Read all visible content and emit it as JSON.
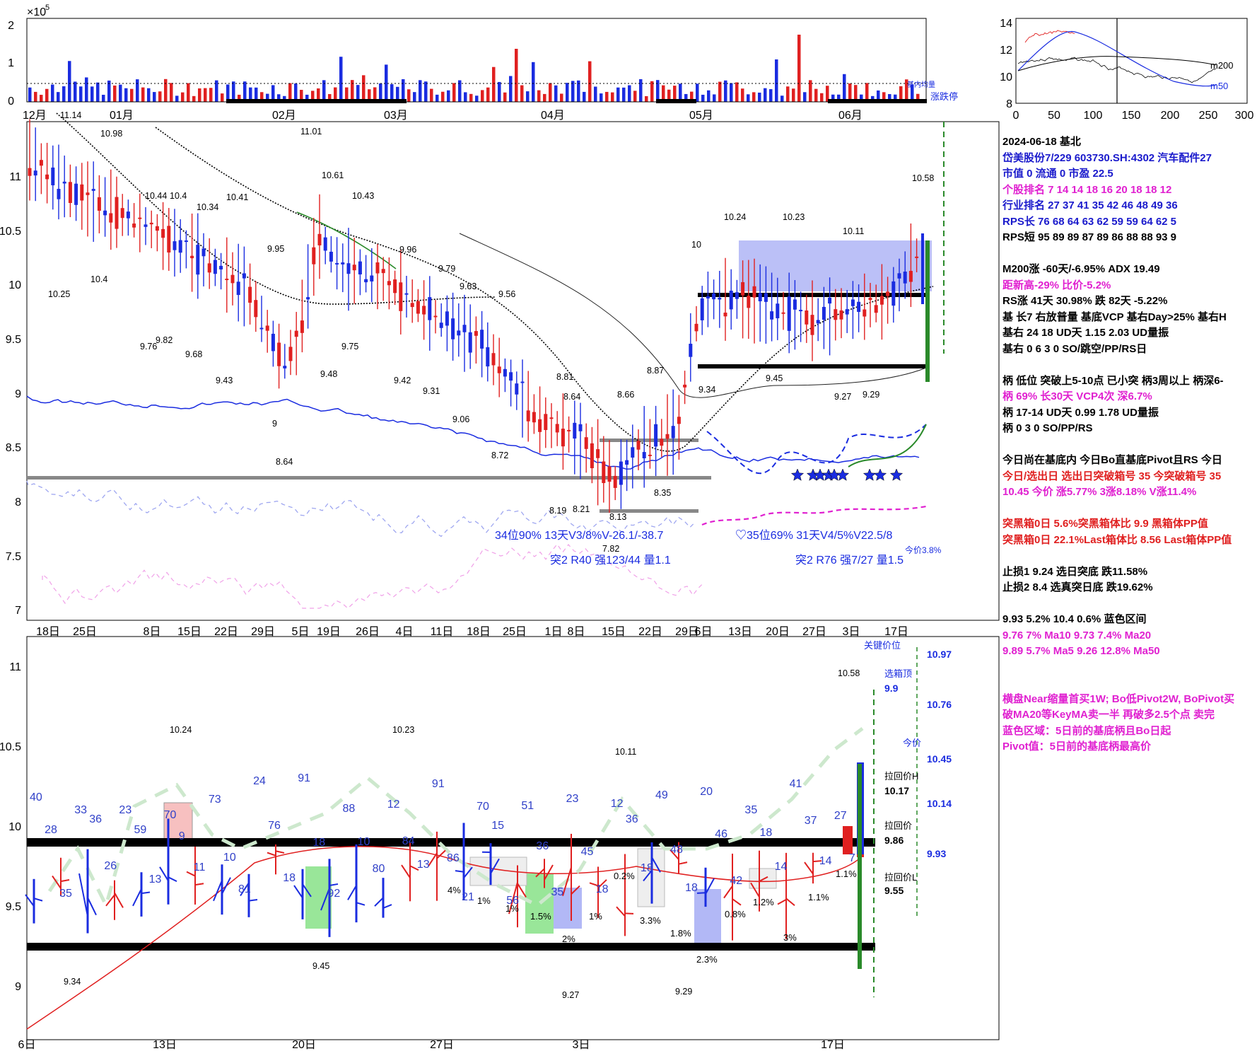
{
  "volume_panel": {
    "exponent": "×10",
    "exponent_power": "5",
    "y_ticks": [
      "2",
      "1",
      "0"
    ],
    "month_labels": [
      "12月",
      "01月",
      "02月",
      "03月",
      "04月",
      "05月",
      "06月"
    ],
    "legend": [
      "基内均量",
      "涨跌停"
    ]
  },
  "inset_chart": {
    "y_ticks": [
      "14",
      "12",
      "10",
      "8"
    ],
    "x_ticks": [
      "0",
      "50",
      "100",
      "150",
      "200",
      "250",
      "300"
    ],
    "series_labels": [
      "m200",
      "m50"
    ]
  },
  "main_chart": {
    "y_ticks": [
      "11",
      "10.5",
      "10",
      "9.5",
      "9",
      "8.5",
      "8",
      "7.5",
      "7"
    ],
    "x_ticks": [
      "18日",
      "25日",
      "8日",
      "15日",
      "22日",
      "29日",
      "5日",
      "19日",
      "26日",
      "4日",
      "11日",
      "18日",
      "25日",
      "1日",
      "8日",
      "15日",
      "22日",
      "29日",
      "6日",
      "13日",
      "20日",
      "27日",
      "3日",
      "17日"
    ],
    "price_labels": [
      "11.14",
      "10.98",
      "11.01",
      "10.61",
      "10.43",
      "10.44",
      "10.4",
      "10.34",
      "10.41",
      "9.95",
      "9.96",
      "9.79",
      "9.63",
      "9.56",
      "10.25",
      "10.4",
      "9.76",
      "9.82",
      "9.68",
      "9.43",
      "9.75",
      "9.48",
      "9.42",
      "9.31",
      "9.06",
      "8.72",
      "8.81",
      "8.64",
      "8.66",
      "8.87",
      "8.35",
      "8.19",
      "8.21",
      "8.13",
      "7.82",
      "9",
      "8.64",
      "10",
      "10.24",
      "10.23",
      "10.11",
      "10.58",
      "9.34",
      "9.45",
      "9.27",
      "9.29"
    ],
    "stats": [
      "34位90%  13天V3/8%V-26.1/-38.7",
      "突2 R40 强123/44 量1.1",
      "♡35位69%  31天V4/5%V22.5/8",
      "突2 R76 强7/27 量1.5",
      "今价3.8%"
    ]
  },
  "side_panel": [
    {
      "text": "2024-06-18 基北",
      "color": "black"
    },
    {
      "text": "岱美股份7/229 603730.SH:4302 汽车配件27",
      "color": "blue"
    },
    {
      "text": "市值 0  流通 0 市盈 22.5",
      "color": "blue_mix"
    },
    {
      "text": " 个股排名 7   14   14   18   16   20   18   18   12",
      "color": "mag"
    },
    {
      "text": " 行业排名 27   37   41   35   42   46   48   49   36",
      "color": "blue"
    },
    {
      "text": " RPS长 76   68   64   63   62   59   59   64   62   5",
      "color": "blue"
    },
    {
      "text": " RPS短 95   89   89   87   89   86   88   88   93   9",
      "color": "black"
    },
    {
      "text": "",
      "color": "black"
    },
    {
      "text": "M200涨 -60天/-6.95%  ADX 19.49",
      "color": "black"
    },
    {
      "text": "距新高-29%  比价-5.2%",
      "color": "mag"
    },
    {
      "text": "RS涨 41天 30.98%  跌 82天 -5.22%",
      "color": "black"
    },
    {
      "text": "基 长7 右放普量 基底VCP 基右Day>25% 基右H",
      "color": "black"
    },
    {
      "text": "基右 24 18 UD天 1.15 2.03 UD量振",
      "color": "black"
    },
    {
      "text": "基右 0 6 3 0 SO/跳空/PP/RS日",
      "color": "black"
    },
    {
      "text": "",
      "color": "black"
    },
    {
      "text": "柄 低位  突破上5-10点  已小突  柄3周以上  柄深6-",
      "color": "black"
    },
    {
      "text": "柄 69%  长30天   VCP4次  深6.7%",
      "color": "mag"
    },
    {
      "text": "柄 17-14 UD天  0.99 1.78 UD量振",
      "color": "black"
    },
    {
      "text": "柄 0 3 0 SO/PP/RS",
      "color": "black"
    },
    {
      "text": "",
      "color": "black"
    },
    {
      "text": "今日尚在基底内  今日Bo直基底Pivot且RS  今日",
      "color": "black"
    },
    {
      "text": "今日/选出日  选出日突破箱号 35 今突破箱号 35",
      "color": "red"
    },
    {
      "text": "10.45 今价  涨5.77% 3涨8.18% V涨11.4%",
      "color": "mag"
    },
    {
      "text": "",
      "color": "black"
    },
    {
      "text": "突黑箱0日 5.6%突黑箱体比 9.9  黑箱体PP值",
      "color": "red"
    },
    {
      "text": "突黑箱0日 22.1%Last箱体比 8.56 Last箱体PP值",
      "color": "red"
    },
    {
      "text": "",
      "color": "black"
    },
    {
      "text": "止损1 9.24 选日突底  跌11.58%",
      "color": "black"
    },
    {
      "text": "止损2 8.4 选真突日底  跌19.62%",
      "color": "black"
    },
    {
      "text": "",
      "color": "black"
    },
    {
      "text": "9.93 5.2% 10.4 0.6%  蓝色区间",
      "color": "black"
    },
    {
      "text": "  9.76 7% Ma10   9.73 7.4% Ma20",
      "color": "mag"
    },
    {
      "text": "  9.89 5.7% Ma5   9.26 12.8% Ma50",
      "color": "mag"
    },
    {
      "text": "",
      "color": "black"
    },
    {
      "text": "",
      "color": "black"
    },
    {
      "text": " 横盘Near缩量首买1W; Bo低Pivot2W, BoPivot买",
      "color": "mag"
    },
    {
      "text": " 破MA20等KeyMA卖一半 再破多2.5个点 卖完",
      "color": "mag"
    },
    {
      "text": "蓝色区域：5日前的基底柄且Bo日起",
      "color": "mag"
    },
    {
      "text": "Pivot值：5日前的基底柄最高价",
      "color": "mag"
    }
  ],
  "detail_chart": {
    "y_ticks": [
      "11",
      "10.5",
      "10",
      "9.5",
      "9"
    ],
    "x_ticks": [
      "6日",
      "13日",
      "20日",
      "27日",
      "3日",
      "17日"
    ],
    "labels_top": [
      "10.24",
      "10.23",
      "10.11",
      "10.58",
      "9.34",
      "9.45",
      "9.27",
      "9.29"
    ],
    "key_price_title": "关键价位",
    "key_prices": [
      {
        "label": "选箱顶",
        "value": "9.9"
      },
      {
        "label": "",
        "value": "10.97"
      },
      {
        "label": "",
        "value": "10.76"
      },
      {
        "label": "今价",
        "value": "10.45"
      },
      {
        "label": "拉回价H",
        "value": "10.17"
      },
      {
        "label": "",
        "value": "10.14"
      },
      {
        "label": "拉回价",
        "value": "9.86"
      },
      {
        "label": "",
        "value": "9.93"
      },
      {
        "label": "拉回价L",
        "value": "9.55"
      }
    ],
    "bar_labels": [
      "40",
      "28",
      "35",
      "33",
      "36",
      "26",
      "23",
      "59",
      "13",
      "70",
      "9",
      "11",
      "73",
      "10",
      "81",
      "24",
      "76",
      "18",
      "91",
      "18",
      "92",
      "88",
      "10",
      "80",
      "12",
      "84",
      "13",
      "91",
      "86",
      "21",
      "70",
      "15",
      "56",
      "51",
      "36",
      "35",
      "23",
      "45",
      "18",
      "12",
      "36",
      "18",
      "49",
      "48",
      "18",
      "20",
      "46",
      "42",
      "35",
      "18",
      "14",
      "41",
      "37",
      "14",
      "27",
      "7"
    ],
    "pct_labels": [
      "4%",
      "1%",
      "1%",
      "1.5%",
      "2%",
      "1%",
      "0.2%",
      "3.3%",
      "1.8%",
      "2.3%",
      "0.8%",
      "1.2%",
      "3%",
      "1.1%",
      "1.1%"
    ]
  },
  "colors": {
    "up": "#e02020",
    "down": "#1a2ce0",
    "ma": "#000000",
    "green": "#2a8a2a",
    "box": "#aab0f5",
    "magenta": "#e020d0"
  }
}
